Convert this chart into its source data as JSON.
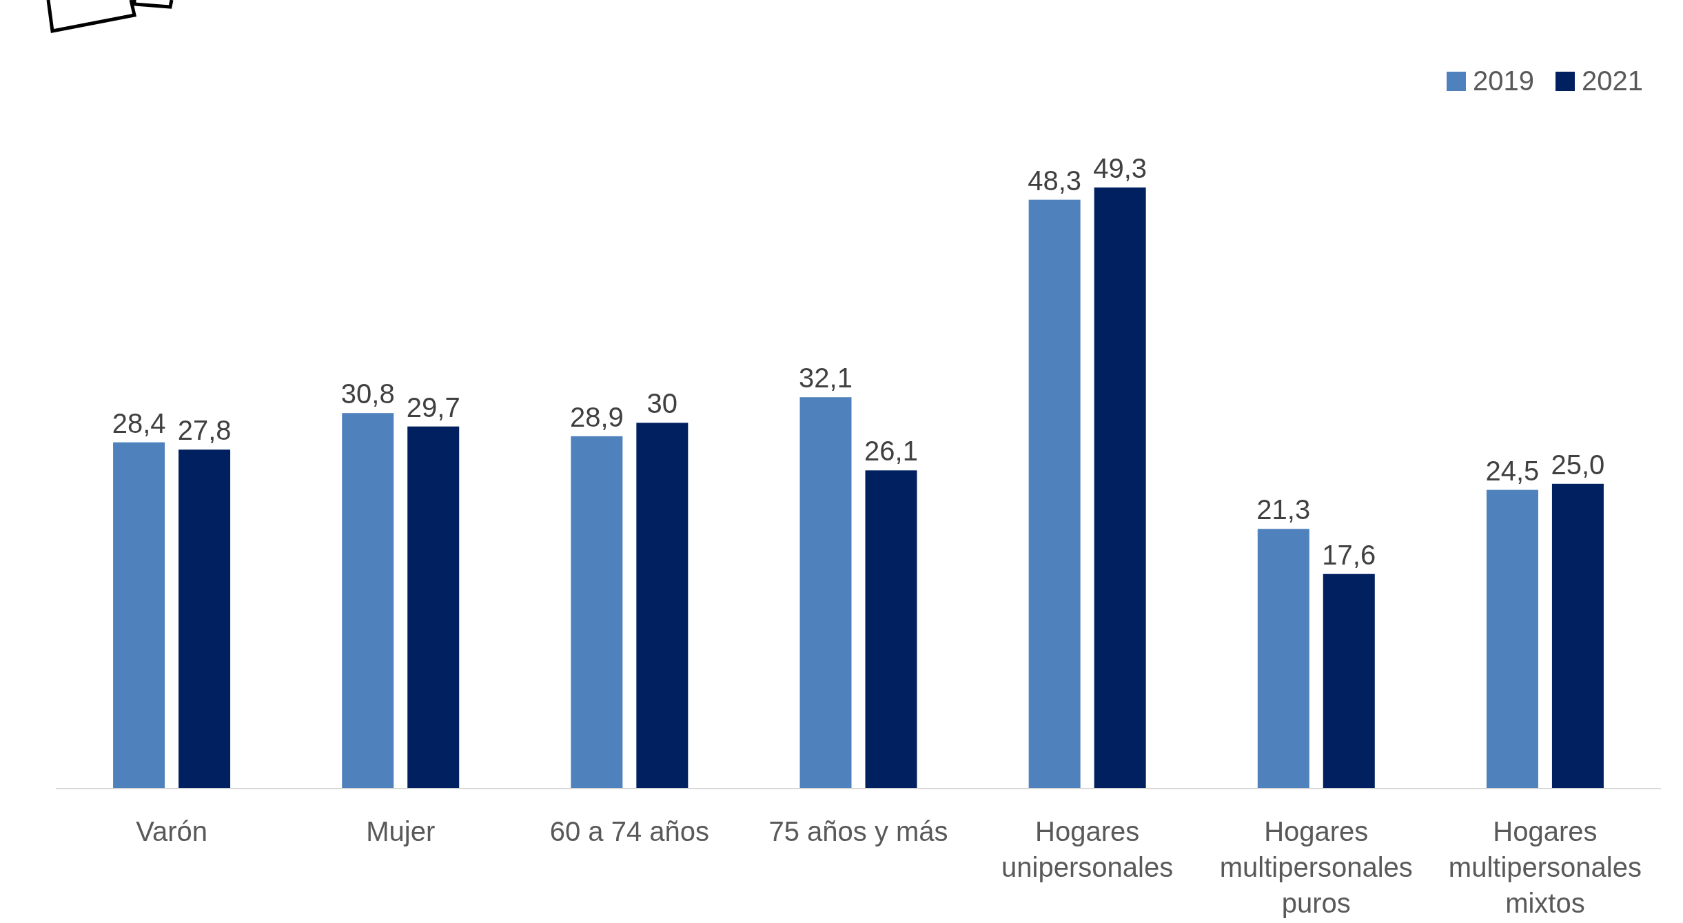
{
  "chart_data": {
    "type": "bar",
    "categories": [
      "Varón",
      "Mujer",
      "60 a 74 años",
      "75 años y más",
      "Hogares unipersonales",
      "Hogares multipersonales puros",
      "Hogares multipersonales mixtos"
    ],
    "series": [
      {
        "name": "2019",
        "color": "#4f81bd",
        "values": [
          28.4,
          30.8,
          28.9,
          32.1,
          48.3,
          21.3,
          24.5
        ],
        "value_labels": [
          "28,4",
          "30,8",
          "28,9",
          "32,1",
          "48,3",
          "21,3",
          "24,5"
        ]
      },
      {
        "name": "2021",
        "color": "#002060",
        "values": [
          27.8,
          29.7,
          30,
          26.1,
          49.3,
          17.6,
          25.0
        ],
        "value_labels": [
          "27,8",
          "29,7",
          "30",
          "26,1",
          "49,3",
          "17,6",
          "25,0"
        ]
      }
    ],
    "legend": "top right",
    "tick_labels": "x"
  }
}
